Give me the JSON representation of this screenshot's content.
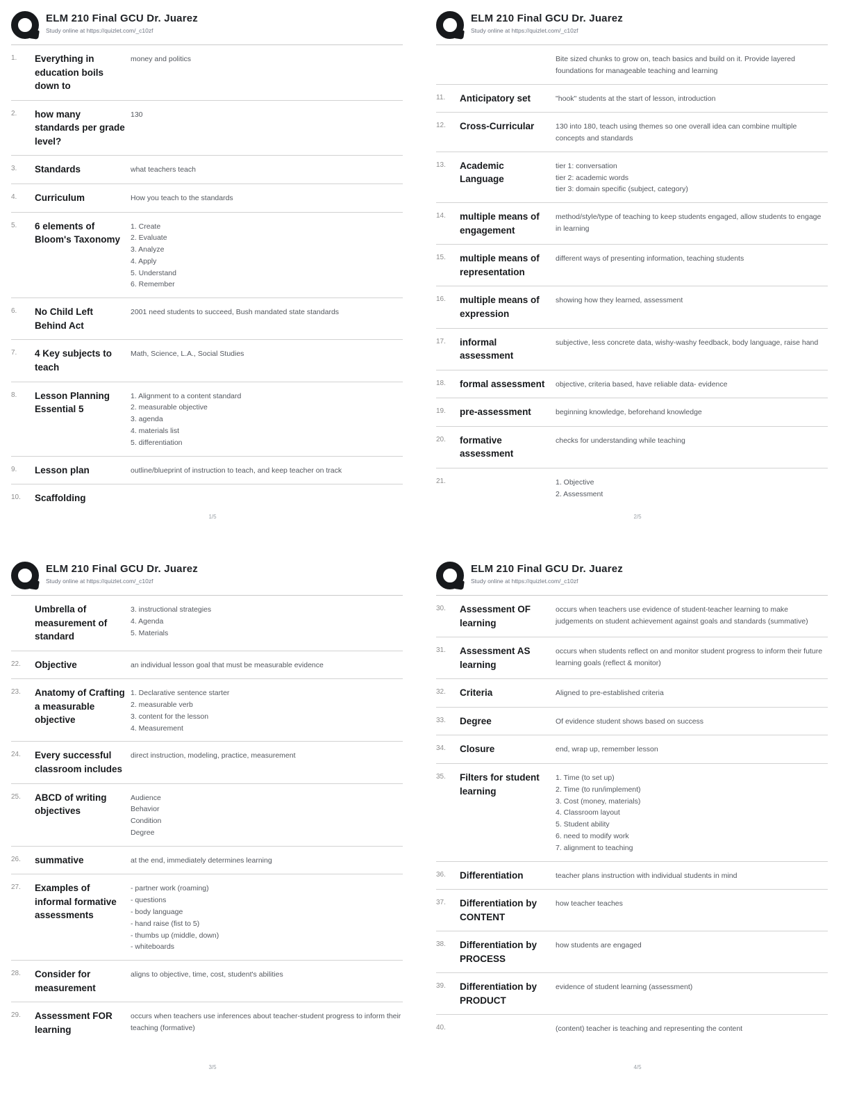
{
  "header": {
    "title": "ELM 210 Final GCU Dr. Juarez",
    "subtitle": "Study online at https://quizlet.com/_c10zf",
    "logo": "quizlet-q-icon"
  },
  "colors": {
    "term_text": "#17191c",
    "definition_text": "#53575e",
    "separator": "#d2d2d2",
    "logo": "#17191c"
  },
  "pages": [
    {
      "footer": "1/5",
      "items": [
        {
          "num": "1.",
          "term": "Everything in education boils down to",
          "def": "money and politics"
        },
        {
          "num": "2.",
          "term": "how many standards per grade level?",
          "def": "130"
        },
        {
          "num": "3.",
          "term": "Standards",
          "def": "what teachers teach"
        },
        {
          "num": "4.",
          "term": "Curriculum",
          "def": "How you teach to the standards"
        },
        {
          "num": "5.",
          "term": "6 elements of Bloom's Taxonomy",
          "def": "1. Create\n2. Evaluate\n3. Analyze\n4. Apply\n5. Understand\n6. Remember"
        },
        {
          "num": "6.",
          "term": "No Child Left Behind Act",
          "def": "2001 need students to succeed, Bush mandated state standards"
        },
        {
          "num": "7.",
          "term": "4 Key subjects to teach",
          "def": "Math, Science, L.A., Social Studies"
        },
        {
          "num": "8.",
          "term": "Lesson Planning Essential 5",
          "def": "1. Alignment to a content standard\n2. measurable objective\n3. agenda\n4. materials list\n5. differentiation"
        },
        {
          "num": "9.",
          "term": "Lesson plan",
          "def": "outline/blueprint of instruction to teach, and keep teacher on track"
        },
        {
          "num": "10.",
          "term": "Scaffolding",
          "def": ""
        }
      ]
    },
    {
      "footer": "2/5",
      "items": [
        {
          "num": "",
          "term": "",
          "def": "Bite sized chunks to grow on, teach basics and build on it. Provide layered foundations for manageable teaching and learning"
        },
        {
          "num": "11.",
          "term": "Anticipatory set",
          "def": "\"hook\" students at the start of lesson, introduction"
        },
        {
          "num": "12.",
          "term": "Cross-Curricular",
          "def": "130 into 180, teach using themes so one overall idea can combine multiple concepts and standards"
        },
        {
          "num": "13.",
          "term": "Academic Language",
          "def": "tier 1: conversation\ntier 2: academic words\ntier 3: domain specific (subject, category)"
        },
        {
          "num": "14.",
          "term": "multiple means of engagement",
          "def": "method/style/type of teaching to keep students engaged, allow students to engage in learning"
        },
        {
          "num": "15.",
          "term": "multiple means of representation",
          "def": "different ways of presenting information, teaching students"
        },
        {
          "num": "16.",
          "term": "multiple means of expression",
          "def": "showing how they learned, assessment"
        },
        {
          "num": "17.",
          "term": "informal assessment",
          "def": "subjective, less concrete data, wishy-washy feedback, body language, raise hand"
        },
        {
          "num": "18.",
          "term": "formal assessment",
          "def": "objective, criteria based, have reliable data- evidence"
        },
        {
          "num": "19.",
          "term": "pre-assessment",
          "def": "beginning knowledge, beforehand knowledge"
        },
        {
          "num": "20.",
          "term": "formative assessment",
          "def": "checks for understanding while teaching"
        },
        {
          "num": "21.",
          "term": "",
          "def": "1. Objective\n2. Assessment"
        }
      ]
    },
    {
      "footer": "3/5",
      "items": [
        {
          "num": "",
          "term": "Umbrella of measurement of standard",
          "def": "3. instructional strategies\n4. Agenda\n5. Materials"
        },
        {
          "num": "22.",
          "term": "Objective",
          "def": "an individual lesson goal that must be measurable evidence"
        },
        {
          "num": "23.",
          "term": "Anatomy of Crafting a measurable objective",
          "def": "1. Declarative sentence starter\n2. measurable verb\n3. content for the lesson\n4. Measurement"
        },
        {
          "num": "24.",
          "term": "Every successful classroom includes",
          "def": "direct instruction, modeling, practice, measurement"
        },
        {
          "num": "25.",
          "term": "ABCD of writing objectives",
          "def": "Audience\nBehavior\nCondition\nDegree"
        },
        {
          "num": "26.",
          "term": "summative",
          "def": "at the end, immediately determines learning"
        },
        {
          "num": "27.",
          "term": "Examples of informal formative assessments",
          "def": "- partner work (roaming)\n- questions\n- body language\n- hand raise (fist to 5)\n- thumbs up (middle, down)\n- whiteboards"
        },
        {
          "num": "28.",
          "term": "Consider for measurement",
          "def": "aligns to objective, time, cost, student's abilities"
        },
        {
          "num": "29.",
          "term": "Assessment FOR learning",
          "def": "occurs when teachers use inferences about teacher-student progress to inform their teaching (formative)"
        }
      ]
    },
    {
      "footer": "4/5",
      "items": [
        {
          "num": "30.",
          "term": "Assessment OF learning",
          "def": "occurs when teachers use evidence of student-teacher learning to make judgements on student achievement against goals and standards (summative)"
        },
        {
          "num": "31.",
          "term": "Assessment AS learning",
          "def": "occurs when students reflect on and monitor student progress to inform their future learning goals (reflect & monitor)"
        },
        {
          "num": "32.",
          "term": "Criteria",
          "def": "Aligned to pre-established criteria"
        },
        {
          "num": "33.",
          "term": "Degree",
          "def": "Of evidence student shows based on success"
        },
        {
          "num": "34.",
          "term": "Closure",
          "def": "end, wrap up, remember lesson"
        },
        {
          "num": "35.",
          "term": "Filters for student learning",
          "def": "1. Time (to set up)\n2. Time (to run/implement)\n3. Cost (money, materials)\n4. Classroom layout\n5. Student ability\n6. need to modify work\n7. alignment to teaching"
        },
        {
          "num": "36.",
          "term": "Differentiation",
          "def": "teacher plans instruction with individual students in mind"
        },
        {
          "num": "37.",
          "term": "Differentiation by CONTENT",
          "def": "how teacher teaches"
        },
        {
          "num": "38.",
          "term": "Differentiation by PROCESS",
          "def": "how students are engaged"
        },
        {
          "num": "39.",
          "term": "Differentiation by PRODUCT",
          "def": "evidence of student learning (assessment)"
        },
        {
          "num": "40.",
          "term": "",
          "def": "(content) teacher is teaching and representing the content"
        }
      ]
    }
  ]
}
